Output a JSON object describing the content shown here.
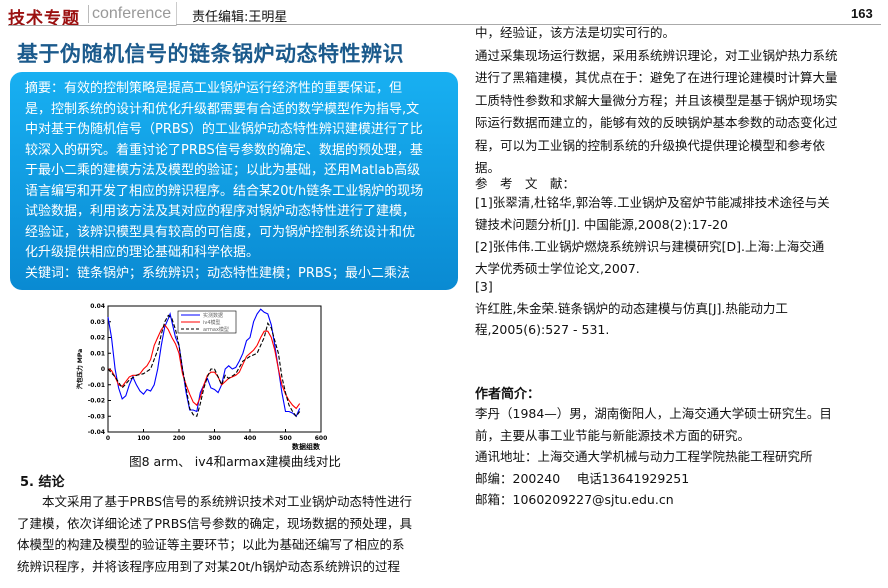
{
  "header": {
    "section": "技术专题",
    "section_sub": "conference",
    "editor": "责任编辑:王明星",
    "page_number": "163"
  },
  "title": "基于伪随机信号的链条锅炉动态特性辨识",
  "abstract": {
    "lines": [
      "摘要：有效的控制策略是提高工业锅炉运行经济性的重要保证，但",
      "是，控制系统的设计和优化升级都需要有合适的数学模型作为指导,文",
      "中对基于伪随机信号（PRBS）的工业锅炉动态特性辨识建模进行了比",
      "较深入的研究。着重讨论了PRBS信号参数的确定、数据的预处理，基",
      "于最小二乘的建模方法及模型的验证；以此为基础，还用Matlab高级",
      "语言编写和开发了相应的辨识程序。结合某20t/h链条工业锅炉的现场",
      "试验数据，利用该方法及其对应的程序对锅炉动态特性进行了建模，",
      "经验证，该辨识模型具有较高的可信度，可为锅炉控制系统设计和优",
      "化升级提供相应的理论基础和科学依据。",
      "关键词：链条锅炉；系统辨识；动态特性建模；PRBS；最小二乘法"
    ],
    "colors": {
      "top": "#18b0f2",
      "bottom": "#0a8ad2"
    }
  },
  "figure": {
    "caption": "图8 arm、 iv4和armax建模曲线对比",
    "chart_data": {
      "type": "line",
      "xlabel": "数据组数",
      "ylabel": "汽包压力 MPa",
      "xlim": [
        0,
        600
      ],
      "ylim": [
        -0.04,
        0.04
      ],
      "xticks": [
        "0",
        "100",
        "200",
        "300",
        "400",
        "500",
        "600"
      ],
      "yticks": [
        "-0.04",
        "-0.03",
        "-0.02",
        "-0.01",
        "0",
        "0.01",
        "0.02",
        "0.03",
        "0.04"
      ],
      "legend_position": "top-center",
      "grid": false,
      "series": [
        {
          "name": "实测数据",
          "color": "#0000ff",
          "dash": "solid",
          "x": [
            0,
            10,
            20,
            30,
            40,
            50,
            60,
            70,
            80,
            90,
            100,
            110,
            120,
            130,
            140,
            150,
            160,
            170,
            175,
            180,
            190,
            200,
            210,
            220,
            230,
            240,
            250,
            260,
            270,
            280,
            290,
            300,
            310,
            320,
            330,
            340,
            350,
            360,
            370,
            380,
            390,
            400,
            410,
            420,
            430,
            440,
            450,
            460,
            470,
            480,
            490,
            500,
            510,
            520,
            530,
            540
          ],
          "y": [
            0.033,
            0.02,
            0,
            -0.012,
            -0.019,
            -0.017,
            -0.01,
            -0.005,
            -0.01,
            -0.014,
            -0.016,
            -0.013,
            -0.014,
            -0.01,
            0,
            0.015,
            0.027,
            0.032,
            0.035,
            0.03,
            0.02,
            0.015,
            0,
            -0.015,
            -0.026,
            -0.026,
            -0.027,
            -0.015,
            -0.01,
            -0.006,
            -0.012,
            -0.013,
            -0.015,
            -0.01,
            0,
            0.002,
            0,
            0.001,
            0.005,
            0.01,
            0.018,
            0.02,
            0.03,
            0.035,
            0.038,
            0.036,
            0.035,
            0.028,
            0.015,
            0,
            -0.015,
            -0.027,
            -0.027,
            -0.028,
            -0.03,
            -0.025
          ]
        },
        {
          "name": "iv4模型",
          "color": "#ff0000",
          "dash": "solid",
          "x": [
            0,
            10,
            20,
            30,
            40,
            50,
            60,
            70,
            80,
            90,
            100,
            110,
            120,
            130,
            140,
            150,
            160,
            170,
            180,
            190,
            200,
            210,
            220,
            230,
            240,
            250,
            260,
            270,
            280,
            290,
            300,
            310,
            320,
            330,
            340,
            350,
            360,
            370,
            380,
            390,
            400,
            410,
            420,
            430,
            440,
            450,
            460,
            470,
            480,
            490,
            500,
            510,
            520,
            530,
            540
          ],
          "y": [
            0,
            -0.001,
            -0.005,
            -0.01,
            -0.011,
            -0.008,
            -0.005,
            -0.004,
            -0.004,
            -0.003,
            0,
            0.002,
            0.006,
            0.015,
            0.02,
            0.025,
            0.028,
            0.025,
            0.02,
            0.016,
            0.01,
            -0.003,
            -0.01,
            -0.016,
            -0.021,
            -0.023,
            -0.018,
            -0.01,
            -0.004,
            -0.002,
            -0.002,
            -0.005,
            -0.01,
            -0.008,
            -0.006,
            -0.005,
            -0.004,
            -0.002,
            0.003,
            0.008,
            0.01,
            0.012,
            0.015,
            0.02,
            0.024,
            0.024,
            0.02,
            0.012,
            0,
            -0.01,
            -0.016,
            -0.02,
            -0.023,
            -0.025,
            -0.022
          ]
        },
        {
          "name": "armax模型",
          "color": "#000000",
          "dash": "dashed",
          "x": [
            0,
            20,
            40,
            60,
            80,
            100,
            120,
            140,
            150,
            160,
            170,
            180,
            190,
            200,
            210,
            220,
            230,
            240,
            250,
            260,
            270,
            280,
            290,
            300,
            310,
            320,
            330,
            340,
            360,
            380,
            400,
            420,
            440,
            450,
            460,
            470,
            480,
            490,
            500,
            510,
            520,
            530,
            540
          ],
          "y": [
            0,
            -0.005,
            -0.012,
            -0.007,
            -0.004,
            -0.003,
            0,
            0.012,
            0.022,
            0.03,
            0.034,
            0.032,
            0.025,
            0.015,
            0,
            -0.012,
            -0.025,
            -0.029,
            -0.03,
            -0.022,
            -0.012,
            -0.005,
            0,
            0,
            -0.005,
            -0.01,
            -0.004,
            -0.006,
            -0.003,
            0.005,
            0.008,
            0.01,
            0.02,
            0.029,
            0.026,
            0.018,
            0.01,
            -0.005,
            -0.015,
            -0.023,
            -0.027,
            -0.03,
            -0.027
          ]
        }
      ]
    }
  },
  "conclusion": {
    "title": "5. 结论",
    "lines": [
      "　　本文采用了基于PRBS信号的系统辨识技术对工业锅炉动态特性进行",
      "了建模，依次详细论述了PRBS信号参数的确定，现场数据的预处理，具",
      "体模型的构建及模型的验证等主要环节；以此为基础还编写了相应的系",
      "统辨识程序，并将该程序应用到了对某20t/h锅炉动态系统辨识的过程"
    ]
  },
  "right_column": {
    "lines": [
      "中，经验证，该方法是切实可行的。",
      "通过采集现场运行数据，采用系统辨识理论，对工业锅炉热力系统",
      "进行了黑箱建模，其优点在于：避免了在进行理论建模时计算大量",
      "工质特性参数和求解大量微分方程；并且该模型是基于锅炉现场实",
      "际运行数据而建立的，能够有效的反映锅炉基本参数的动态变化过",
      "程，可以为工业锅的控制系统的升级换代提供理论模型和参考依",
      "据。",
      "参　考　文　献：",
      "[1]张翠清,杜铭华,郭治等.工业锅炉及窑炉节能减排技术途径与关",
      "键技术问题分析[J]. 中国能源,2008(2):17-20",
      "[2]张伟伟.工业锅炉燃烧系统辨识与建模研究[D].上海:上海交通",
      "大学优秀硕士学位论文,2007.",
      "[3]",
      "许红胜,朱金荣.链条锅炉的动态建模与仿真[J].热能动力工",
      "程,2005(6):527 - 531."
    ]
  },
  "author": {
    "title": "作者简介：",
    "lines": [
      "李丹（1984—）男，湖南衡阳人，上海交通大学硕士研究生。目",
      "前，主要从事工业节能与新能源技术方面的研究。",
      "通讯地址：上海交通大学机械与动力工程学院热能工程研究所",
      "邮编：200240　 电话13641929251",
      "邮箱：1060209227@sjtu.edu.cn"
    ]
  }
}
